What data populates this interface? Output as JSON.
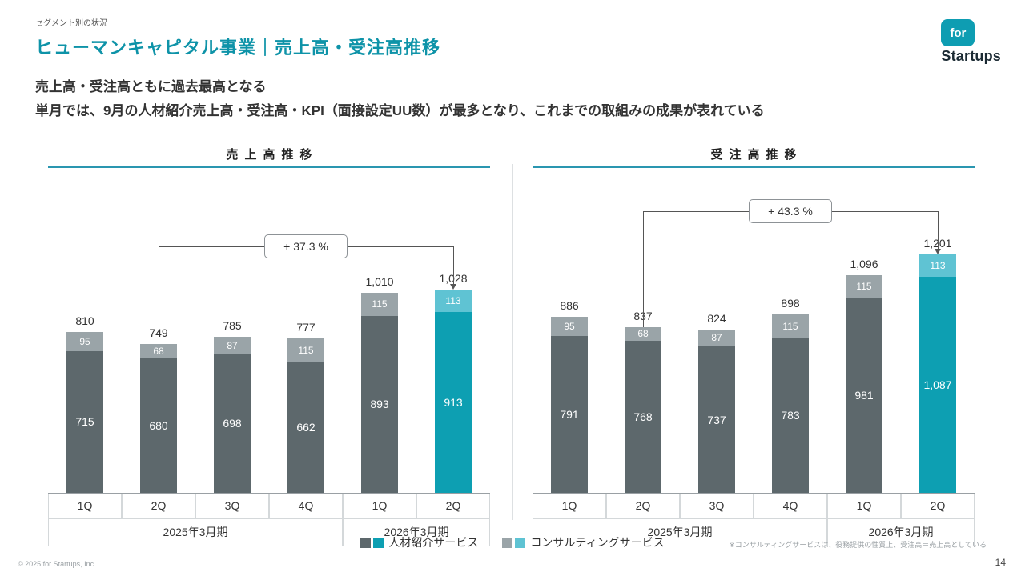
{
  "page": {
    "kicker": "セグメント別の状況",
    "title": "ヒューマンキャピタル事業｜売上高・受注高推移",
    "subtitle_line1": "売上高・受注高ともに過去最高となる",
    "subtitle_line2": "単月では、9月の人材紹介売上高・受注高・KPI（面接設定UU数）が最多となり、これまでの取組みの成果が表れている",
    "footnote": "※コンサルティングサービスは、役務提供の性質上、受注高＝売上高としている",
    "footer_left": "© 2025 for Startups, Inc.",
    "page_number": "14"
  },
  "logo": {
    "mark": "for",
    "wordmark": "Startups"
  },
  "colors": {
    "accent": "#0e93a8",
    "series_main": "#5d686c",
    "series_top": "#9aa4a8",
    "highlight_main": "#0d9fb2",
    "highlight_top": "#5fc3d3",
    "bracket_line": "#555555"
  },
  "legend": [
    {
      "label": "人材紹介サービス",
      "colors": [
        "#5d686c",
        "#0d9fb2"
      ]
    },
    {
      "label": "コンサルティングサービス",
      "colors": [
        "#9aa4a8",
        "#5fc3d3"
      ]
    }
  ],
  "chart_data": [
    {
      "type": "bar",
      "stacked": true,
      "title": "売上高推移",
      "categories": [
        "1Q",
        "2Q",
        "3Q",
        "4Q",
        "1Q",
        "2Q"
      ],
      "period_groups": [
        {
          "label": "2025年3月期",
          "span": 4
        },
        {
          "label": "2026年3月期",
          "span": 2
        }
      ],
      "series": [
        {
          "name": "人材紹介サービス",
          "values": [
            715,
            680,
            698,
            662,
            893,
            913
          ]
        },
        {
          "name": "コンサルティングサービス",
          "values": [
            95,
            68,
            87,
            115,
            115,
            113
          ]
        }
      ],
      "totals": [
        "810",
        "749",
        "785",
        "777",
        "1,010",
        "1,028"
      ],
      "highlight_index": 5,
      "annotation": {
        "label": "+ 37.3 %",
        "from_index": 1,
        "to_index": 5
      },
      "y_axis_visible": false,
      "grid": false
    },
    {
      "type": "bar",
      "stacked": true,
      "title": "受注高推移",
      "categories": [
        "1Q",
        "2Q",
        "3Q",
        "4Q",
        "1Q",
        "2Q"
      ],
      "period_groups": [
        {
          "label": "2025年3月期",
          "span": 4
        },
        {
          "label": "2026年3月期",
          "span": 2
        }
      ],
      "series": [
        {
          "name": "人材紹介サービス",
          "values": [
            791,
            768,
            737,
            783,
            981,
            1087
          ]
        },
        {
          "name": "コンサルティングサービス",
          "values": [
            95,
            68,
            87,
            115,
            115,
            113
          ]
        }
      ],
      "totals": [
        "886",
        "837",
        "824",
        "898",
        "1,096",
        "1,201"
      ],
      "highlight_index": 5,
      "annotation": {
        "label": "+ 43.3 %",
        "from_index": 1,
        "to_index": 5
      },
      "y_axis_visible": false,
      "grid": false
    }
  ]
}
